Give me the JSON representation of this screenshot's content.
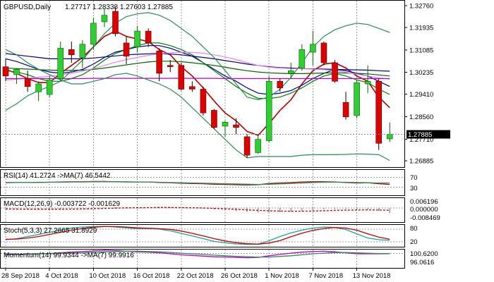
{
  "chart_data": {
    "type": "candlestick",
    "symbol_label": "GBPUSD,Daily",
    "ohlc_label": "1.27717 1.28338 1.27603 1.27885",
    "current_price_label": "1.27885",
    "price_axis_labels": [
      "1.32760",
      "1.31935",
      "1.31085",
      "1.30235",
      "1.29410",
      "1.28560",
      "1.27710",
      "1.26885"
    ],
    "price_axis_values": [
      1.3276,
      1.31935,
      1.31085,
      1.30235,
      1.2941,
      1.2856,
      1.2771,
      1.26885
    ],
    "ylim": [
      1.2665,
      1.3295
    ],
    "date_labels": [
      "28 Sep 2018",
      "4 Oct 2018",
      "10 Oct 2018",
      "16 Oct 2018",
      "22 Oct 2018",
      "26 Oct 2018",
      "1 Nov 2018",
      "7 Nov 2018",
      "13 Nov 2018"
    ],
    "date_label_indices": [
      0,
      4,
      8,
      12,
      16,
      20,
      24,
      28,
      32
    ],
    "candles": [
      {
        "o": 1.3045,
        "h": 1.3075,
        "l": 1.299,
        "c": 1.301
      },
      {
        "o": 1.3015,
        "h": 1.304,
        "l": 1.298,
        "c": 1.3035
      },
      {
        "o": 1.3,
        "h": 1.303,
        "l": 1.295,
        "c": 1.297
      },
      {
        "o": 1.295,
        "h": 1.299,
        "l": 1.2915,
        "c": 1.298
      },
      {
        "o": 1.294,
        "h": 1.301,
        "l": 1.293,
        "c": 1.2995
      },
      {
        "o": 1.3,
        "h": 1.314,
        "l": 1.299,
        "c": 1.3115
      },
      {
        "o": 1.311,
        "h": 1.314,
        "l": 1.306,
        "c": 1.309
      },
      {
        "o": 1.308,
        "h": 1.3145,
        "l": 1.304,
        "c": 1.313
      },
      {
        "o": 1.313,
        "h": 1.323,
        "l": 1.311,
        "c": 1.321
      },
      {
        "o": 1.3215,
        "h": 1.3265,
        "l": 1.3195,
        "c": 1.324
      },
      {
        "o": 1.3255,
        "h": 1.327,
        "l": 1.316,
        "c": 1.317
      },
      {
        "o": 1.3135,
        "h": 1.316,
        "l": 1.3055,
        "c": 1.3085
      },
      {
        "o": 1.312,
        "h": 1.32,
        "l": 1.31,
        "c": 1.318
      },
      {
        "o": 1.318,
        "h": 1.319,
        "l": 1.312,
        "c": 1.3135
      },
      {
        "o": 1.3105,
        "h": 1.3115,
        "l": 1.299,
        "c": 1.302
      },
      {
        "o": 1.305,
        "h": 1.307,
        "l": 1.3025,
        "c": 1.3045
      },
      {
        "o": 1.305,
        "h": 1.306,
        "l": 1.2955,
        "c": 1.296
      },
      {
        "o": 1.297,
        "h": 1.299,
        "l": 1.295,
        "c": 1.296
      },
      {
        "o": 1.296,
        "h": 1.297,
        "l": 1.286,
        "c": 1.287
      },
      {
        "o": 1.288,
        "h": 1.2885,
        "l": 1.281,
        "c": 1.2815
      },
      {
        "o": 1.282,
        "h": 1.284,
        "l": 1.278,
        "c": 1.2835
      },
      {
        "o": 1.2825,
        "h": 1.285,
        "l": 1.279,
        "c": 1.2815
      },
      {
        "o": 1.278,
        "h": 1.279,
        "l": 1.27,
        "c": 1.271
      },
      {
        "o": 1.272,
        "h": 1.279,
        "l": 1.2715,
        "c": 1.277
      },
      {
        "o": 1.2765,
        "h": 1.301,
        "l": 1.276,
        "c": 1.299
      },
      {
        "o": 1.299,
        "h": 1.3,
        "l": 1.295,
        "c": 1.2965
      },
      {
        "o": 1.302,
        "h": 1.306,
        "l": 1.3,
        "c": 1.303
      },
      {
        "o": 1.304,
        "h": 1.313,
        "l": 1.303,
        "c": 1.311
      },
      {
        "o": 1.31,
        "h": 1.318,
        "l": 1.305,
        "c": 1.313
      },
      {
        "o": 1.3135,
        "h": 1.314,
        "l": 1.305,
        "c": 1.306
      },
      {
        "o": 1.306,
        "h": 1.307,
        "l": 1.2985,
        "c": 1.299
      },
      {
        "o": 1.291,
        "h": 1.295,
        "l": 1.2845,
        "c": 1.2855
      },
      {
        "o": 1.286,
        "h": 1.2995,
        "l": 1.285,
        "c": 1.2985
      },
      {
        "o": 1.298,
        "h": 1.305,
        "l": 1.2945,
        "c": 1.299
      },
      {
        "o": 1.299,
        "h": 1.3,
        "l": 1.273,
        "c": 1.2755
      },
      {
        "o": 1.2772,
        "h": 1.2834,
        "l": 1.276,
        "c": 1.2789
      }
    ],
    "overlay_lines": [
      {
        "color": "#b20000",
        "values": [
          1.3035,
          1.302,
          1.3,
          1.2985,
          1.2985,
          1.302,
          1.305,
          1.308,
          1.312,
          1.316,
          1.318,
          1.316,
          1.315,
          1.314,
          1.311,
          1.309,
          1.3045,
          1.301,
          1.2965,
          1.2915,
          1.287,
          1.284,
          1.28,
          1.2785,
          1.283,
          1.288,
          1.292,
          1.298,
          1.303,
          1.3055,
          1.306,
          1.304,
          1.301,
          1.299,
          1.293,
          1.289
        ]
      },
      {
        "color": "#00008b",
        "values": [
          1.3075,
          1.3065,
          1.305,
          1.3035,
          1.3025,
          1.302,
          1.3025,
          1.3035,
          1.3055,
          1.308,
          1.31,
          1.311,
          1.312,
          1.3125,
          1.3125,
          1.3115,
          1.31,
          1.3085,
          1.306,
          1.3035,
          1.301,
          1.299,
          1.2965,
          1.2945,
          1.294,
          1.2945,
          1.2955,
          1.2975,
          1.3,
          1.302,
          1.3035,
          1.303,
          1.302,
          1.301,
          1.299,
          1.297
        ]
      },
      {
        "color": "#008000",
        "values": [
          1.303,
          1.3025,
          1.3015,
          1.3,
          1.299,
          1.299,
          1.3,
          1.3015,
          1.304,
          1.307,
          1.3095,
          1.311,
          1.3125,
          1.3135,
          1.3135,
          1.3125,
          1.311,
          1.309,
          1.306,
          1.303,
          1.3,
          1.297,
          1.2945,
          1.2925,
          1.2925,
          1.293,
          1.2945,
          1.2965,
          1.299,
          1.301,
          1.302,
          1.301,
          1.2995,
          1.2985,
          1.296,
          1.294
        ]
      },
      {
        "color": "#00007a",
        "values": [
          1.3095,
          1.309,
          1.3085,
          1.308,
          1.3075,
          1.3075,
          1.3075,
          1.3075,
          1.3078,
          1.3082,
          1.3086,
          1.309,
          1.3092,
          1.3094,
          1.3095,
          1.3093,
          1.309,
          1.3085,
          1.308,
          1.3075,
          1.3068,
          1.3062,
          1.3055,
          1.305,
          1.3045,
          1.3042,
          1.304,
          1.3038,
          1.3037,
          1.3036,
          1.3035,
          1.3034,
          1.3033,
          1.3032,
          1.303,
          1.3028
        ]
      },
      {
        "color": "#006400",
        "values": [
          1.304,
          1.3038,
          1.3036,
          1.3034,
          1.3032,
          1.3031,
          1.3031,
          1.3032,
          1.3035,
          1.304,
          1.3046,
          1.3052,
          1.3058,
          1.3063,
          1.3066,
          1.3066,
          1.3064,
          1.306,
          1.3055,
          1.305,
          1.3043,
          1.3036,
          1.303,
          1.3025,
          1.3022,
          1.302,
          1.3019,
          1.3019,
          1.302,
          1.3021,
          1.3022,
          1.3021,
          1.302,
          1.3018,
          1.3014,
          1.301
        ]
      },
      {
        "color": "#ee82ee",
        "values": [
          1.2995,
          1.2998,
          1.3001,
          1.3005,
          1.3009,
          1.3014,
          1.302,
          1.3028,
          1.3038,
          1.305,
          1.3062,
          1.3072,
          1.308,
          1.3088,
          1.3094,
          1.3098,
          1.31,
          1.3099,
          1.3096,
          1.309,
          1.3082,
          1.3072,
          1.306,
          1.305,
          1.3043,
          1.304,
          1.3038,
          1.3037,
          1.3036,
          1.3034,
          1.303,
          1.3024,
          1.3017,
          1.301,
          1.3003,
          1.2998
        ]
      },
      {
        "color": "#c000c0",
        "values": [
          1.3,
          1.3,
          1.3,
          1.3,
          1.3,
          1.3,
          1.3,
          1.3,
          1.3001,
          1.3001,
          1.3001,
          1.3001,
          1.3001,
          1.3001,
          1.3001,
          1.3001,
          1.3001,
          1.3001,
          1.3001,
          1.3001,
          1.3,
          1.3,
          1.3,
          1.3,
          1.3,
          1.3,
          1.3,
          1.3,
          1.3,
          1.3,
          1.3,
          1.3,
          1.3,
          1.3,
          1.3,
          1.3
        ]
      },
      {
        "color": "#2e8b57",
        "values": [
          1.288,
          1.2905,
          1.2935,
          1.2955,
          1.297,
          1.299,
          1.303,
          1.307,
          1.312,
          1.317,
          1.321,
          1.3235,
          1.3245,
          1.325,
          1.324,
          1.322,
          1.319,
          1.316,
          1.312,
          1.308,
          1.303,
          1.298,
          1.293,
          1.292,
          1.293,
          1.296,
          1.3005,
          1.306,
          1.312,
          1.316,
          1.3185,
          1.32,
          1.321,
          1.3205,
          1.319,
          1.3175
        ]
      },
      {
        "color": "#2e8b57",
        "values": [
          1.311,
          1.309,
          1.306,
          1.3035,
          1.3015,
          1.2995,
          1.298,
          1.298,
          1.299,
          1.3,
          1.3015,
          1.302,
          1.301,
          1.2995,
          1.298,
          1.296,
          1.293,
          1.289,
          1.285,
          1.281,
          1.277,
          1.273,
          1.27,
          1.2705,
          1.2705,
          1.2705,
          1.2705,
          1.271,
          1.2712,
          1.2712,
          1.2712,
          1.2713,
          1.2715,
          1.2714,
          1.2712,
          1.269
        ]
      }
    ],
    "indicator_panels": [
      {
        "label": "RSI(14) 41.2724 ->MA(7) 46.5442",
        "axis_labels": [
          "70",
          "30"
        ],
        "range": [
          0,
          100
        ],
        "levels": [
          70,
          30
        ],
        "series": [
          {
            "color": "#b20000",
            "values": [
              48,
              49,
              49,
              50,
              50,
              51,
              52,
              52,
              53,
              53,
              52,
              51,
              51,
              51,
              49,
              48,
              46,
              45,
              44,
              42,
              41,
              40,
              39,
              40,
              45,
              47,
              49,
              51,
              52,
              52,
              51,
              49,
              47,
              48,
              44,
              41
            ]
          },
          {
            "color": "#2e8b57",
            "values": [
              49,
              49,
              49,
              49,
              50,
              50,
              51,
              51,
              52,
              52,
              52,
              52,
              51,
              51,
              50,
              49,
              48,
              47,
              46,
              45,
              44,
              43,
              42,
              41,
              42,
              43,
              45,
              47,
              49,
              50,
              50,
              50,
              49,
              48,
              47,
              47
            ]
          }
        ]
      },
      {
        "label": "MACD(12,26,9) -0.003722 -0.001629",
        "axis_labels": [
          "0.006196",
          "0.000000",
          "-0.008469"
        ],
        "range": [
          -0.0099,
          0.0075
        ],
        "levels": [
          0
        ],
        "histogram": [
          -0.0006,
          -0.0008,
          -0.0009,
          -0.001,
          -0.0009,
          -0.0007,
          -0.0004,
          -0.0002,
          0.0001,
          0.0004,
          0.0006,
          0.0007,
          0.0008,
          0.0008,
          0.0007,
          0.0005,
          0.0002,
          -0.0001,
          -0.0005,
          -0.001,
          -0.0016,
          -0.0022,
          -0.0028,
          -0.0033,
          -0.0032,
          -0.003,
          -0.0027,
          -0.0022,
          -0.0016,
          -0.001,
          -0.0007,
          -0.0008,
          -0.001,
          -0.001,
          -0.002,
          -0.0037
        ],
        "series": [
          {
            "color": "#c00000",
            "values": [
              -0.0006,
              -0.0007,
              -0.0008,
              -0.0008,
              -0.0008,
              -0.0008,
              -0.0007,
              -0.0006,
              -0.0004,
              -0.0002,
              0.0,
              0.0002,
              0.0003,
              0.0004,
              0.0005,
              0.0005,
              0.0004,
              0.0003,
              0.0001,
              -0.0002,
              -0.0005,
              -0.0009,
              -0.0013,
              -0.0017,
              -0.002,
              -0.0022,
              -0.0023,
              -0.0023,
              -0.0022,
              -0.002,
              -0.0017,
              -0.0015,
              -0.0014,
              -0.0013,
              -0.0014,
              -0.0016
            ]
          }
        ]
      },
      {
        "label": "Stoch(5,3,3) 27.2665 31.8929",
        "axis_labels": [
          "80",
          "20"
        ],
        "range": [
          0,
          100
        ],
        "levels": [
          80,
          20
        ],
        "series": [
          {
            "color": "#20a0a0",
            "values": [
              30,
              35,
              45,
              55,
              65,
              75,
              85,
              90,
              92,
              93,
              90,
              86,
              82,
              84,
              80,
              72,
              60,
              48,
              35,
              22,
              15,
              10,
              8,
              9,
              25,
              45,
              62,
              75,
              85,
              90,
              88,
              78,
              58,
              38,
              30,
              27
            ]
          },
          {
            "color": "#c00000",
            "values": [
              32,
              33,
              38,
              45,
              55,
              65,
              75,
              83,
              89,
              92,
              92,
              90,
              86,
              84,
              82,
              79,
              71,
              60,
              48,
              35,
              24,
              16,
              11,
              9,
              14,
              26,
              44,
              61,
              74,
              83,
              88,
              85,
              75,
              58,
              42,
              32
            ]
          }
        ]
      },
      {
        "label": "Momentum(14) 99.9344 ->MA(7) 99.9916",
        "axis_labels": [
          "100.6200",
          "96.0616"
        ],
        "range": [
          95.8,
          101.2
        ],
        "levels": [
          100
        ],
        "series": [
          {
            "color": "#c000c0",
            "values": [
              99.6,
              99.7,
              99.8,
              99.9,
              100.0,
              100.2,
              100.4,
              100.6,
              100.8,
              101.0,
              100.9,
              100.7,
              100.5,
              100.4,
              100.2,
              99.9,
              99.6,
              99.4,
              99.2,
              99.0,
              98.9,
              98.8,
              98.7,
              98.8,
              99.3,
              99.7,
              100.1,
              100.4,
              100.6,
              100.7,
              100.5,
              100.2,
              99.9,
              99.9,
              99.9,
              99.93
            ]
          },
          {
            "color": "#2e8b57",
            "values": [
              99.8,
              99.8,
              99.8,
              99.9,
              99.9,
              100.0,
              100.1,
              100.2,
              100.4,
              100.5,
              100.6,
              100.7,
              100.7,
              100.6,
              100.5,
              100.3,
              100.1,
              99.9,
              99.7,
              99.5,
              99.3,
              99.1,
              99.0,
              98.9,
              98.9,
              99.1,
              99.3,
              99.6,
              99.9,
              100.1,
              100.3,
              100.3,
              100.2,
              100.1,
              100.0,
              99.99
            ]
          }
        ]
      }
    ]
  }
}
